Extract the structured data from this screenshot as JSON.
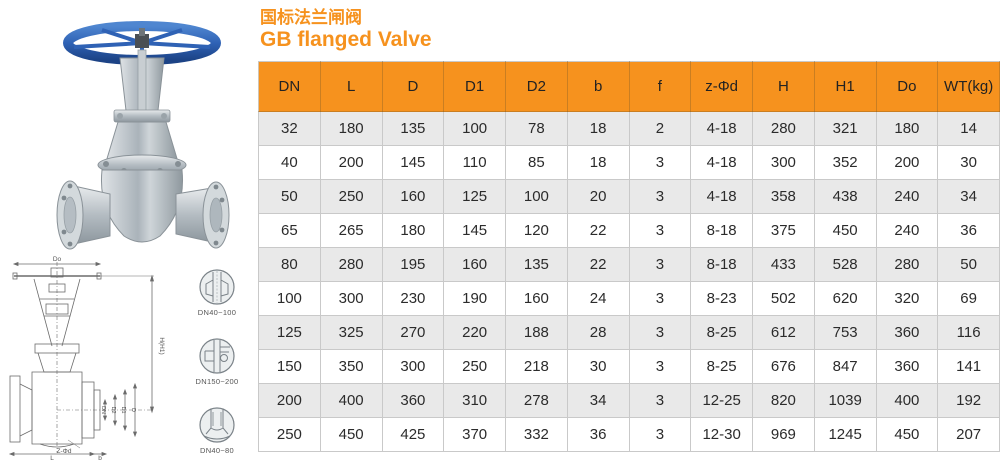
{
  "title": {
    "zh": "国标法兰闸阀",
    "en": "GB flanged Valve"
  },
  "colors": {
    "accent": "#F6921E",
    "alt_row": "#E9E9E9",
    "border": "#C9C9C9",
    "handwheel_blue": "#2F62B5",
    "text": "#2B2B2B"
  },
  "table": {
    "header": [
      "DN",
      "L",
      "D",
      "D1",
      "D2",
      "b",
      "f",
      "z-Φd",
      "H",
      "H1",
      "Do",
      "WT(kg)"
    ],
    "rows": [
      [
        "32",
        "180",
        "135",
        "100",
        "78",
        "18",
        "2",
        "4-18",
        "280",
        "321",
        "180",
        "14"
      ],
      [
        "40",
        "200",
        "145",
        "110",
        "85",
        "18",
        "3",
        "4-18",
        "300",
        "352",
        "200",
        "30"
      ],
      [
        "50",
        "250",
        "160",
        "125",
        "100",
        "20",
        "3",
        "4-18",
        "358",
        "438",
        "240",
        "34"
      ],
      [
        "65",
        "265",
        "180",
        "145",
        "120",
        "22",
        "3",
        "8-18",
        "375",
        "450",
        "240",
        "36"
      ],
      [
        "80",
        "280",
        "195",
        "160",
        "135",
        "22",
        "3",
        "8-18",
        "433",
        "528",
        "280",
        "50"
      ],
      [
        "100",
        "300",
        "230",
        "190",
        "160",
        "24",
        "3",
        "8-23",
        "502",
        "620",
        "320",
        "69"
      ],
      [
        "125",
        "325",
        "270",
        "220",
        "188",
        "28",
        "3",
        "8-25",
        "612",
        "753",
        "360",
        "116"
      ],
      [
        "150",
        "350",
        "300",
        "250",
        "218",
        "30",
        "3",
        "8-25",
        "676",
        "847",
        "360",
        "141"
      ],
      [
        "200",
        "400",
        "360",
        "310",
        "278",
        "34",
        "3",
        "12-25",
        "820",
        "1039",
        "400",
        "192"
      ],
      [
        "250",
        "450",
        "425",
        "370",
        "332",
        "36",
        "3",
        "12-30",
        "969",
        "1245",
        "450",
        "207"
      ]
    ]
  },
  "drawing": {
    "dim_top": "Do",
    "dim_side": "H(H1)",
    "dim_bottom": "L",
    "dim_b": "b",
    "dim_bolt": "Z-Φd",
    "flange_dims": [
      "DN",
      "D2",
      "D1",
      "D"
    ],
    "details": [
      {
        "caption": "DN40~100"
      },
      {
        "caption": "DN150~200"
      },
      {
        "caption": "DN40~80"
      }
    ]
  }
}
